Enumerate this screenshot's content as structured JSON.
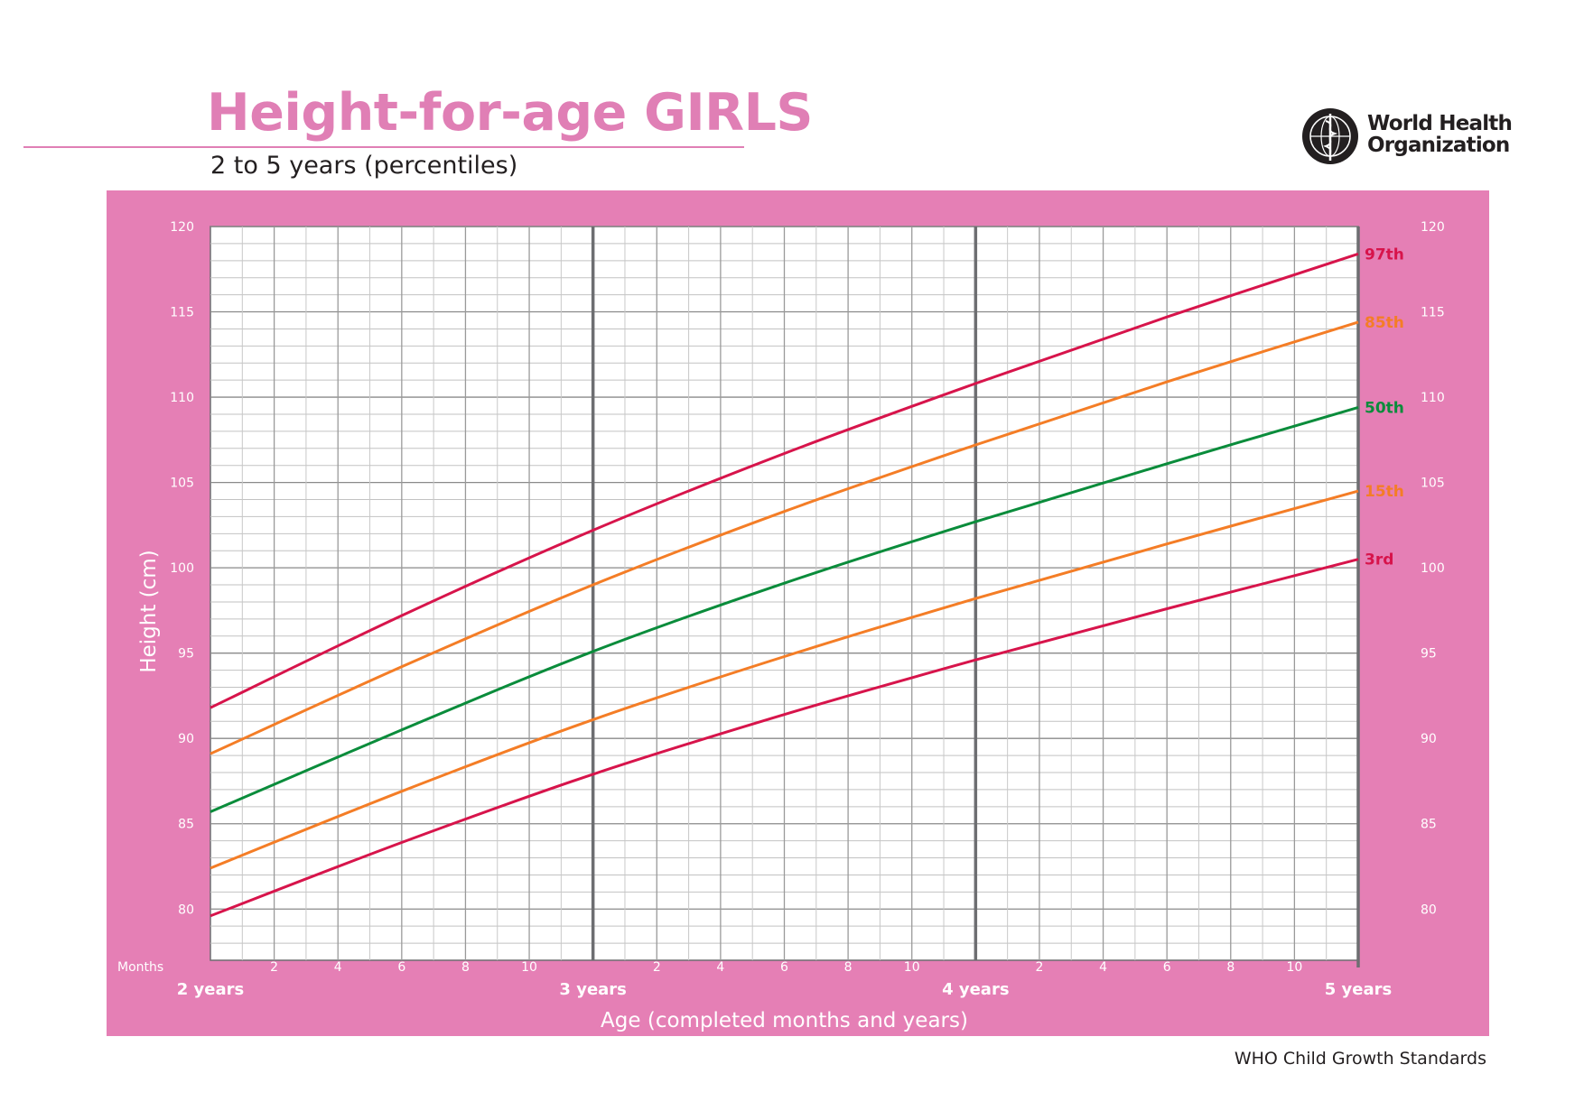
{
  "header": {
    "title": "Height-for-age GIRLS",
    "subtitle": "2 to 5 years (percentiles)",
    "logo_line1": "World Health",
    "logo_line2": "Organization",
    "logo_icon": "who-emblem-icon"
  },
  "footer": {
    "text": "WHO Child Growth Standards"
  },
  "colors": {
    "panel": "#e57fb5",
    "title": "#e07fb5",
    "p3": "#d7144b",
    "p15": "#f47d26",
    "p50": "#0a8c3b",
    "p85": "#f47d26",
    "p97": "#d7144b"
  },
  "chart_data": {
    "type": "line",
    "xlabel": "Age (completed months and years)",
    "ylabel": "Height (cm)",
    "x_range_months": [
      24,
      60
    ],
    "ylim": [
      77,
      120
    ],
    "y_ticks": [
      80,
      85,
      90,
      95,
      100,
      105,
      110,
      115,
      120
    ],
    "months_label": "Months",
    "month_ticks": [
      "2",
      "4",
      "6",
      "8",
      "10"
    ],
    "year_labels": [
      "2 years",
      "3 years",
      "4 years",
      "5 years"
    ],
    "grid": true,
    "x": [
      24,
      30,
      36,
      42,
      48,
      54,
      60
    ],
    "series": [
      {
        "name": "3rd",
        "values": [
          79.6,
          83.9,
          87.9,
          91.4,
          94.6,
          97.6,
          100.5
        ]
      },
      {
        "name": "15th",
        "values": [
          82.4,
          86.9,
          91.1,
          94.8,
          98.2,
          101.4,
          104.5
        ]
      },
      {
        "name": "50th",
        "values": [
          85.7,
          90.5,
          95.1,
          99.1,
          102.7,
          106.1,
          109.4
        ]
      },
      {
        "name": "85th",
        "values": [
          89.1,
          94.2,
          99.0,
          103.3,
          107.2,
          110.9,
          114.4
        ]
      },
      {
        "name": "97th",
        "values": [
          91.8,
          97.2,
          102.2,
          106.7,
          110.8,
          114.7,
          118.4
        ]
      }
    ]
  }
}
